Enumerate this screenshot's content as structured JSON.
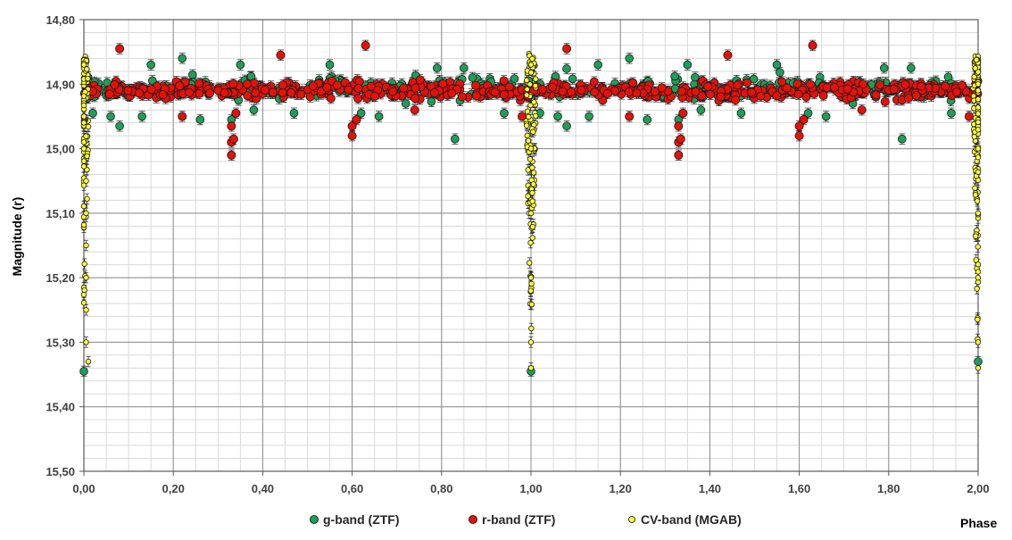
{
  "chart_data": {
    "type": "scatter",
    "ylabel": "Magnitude (r)",
    "xlabel": "Phase",
    "xlim": [
      0.0,
      2.0
    ],
    "ylim": [
      14.8,
      15.5
    ],
    "y_inverted": true,
    "x_major_ticks": [
      "0,00",
      "0,20",
      "0,40",
      "0,60",
      "0,80",
      "1,00",
      "1,20",
      "1,40",
      "1,60",
      "1,80",
      "2,00"
    ],
    "y_major_ticks": [
      "14,80",
      "14,90",
      "15,00",
      "15,10",
      "15,20",
      "15,30",
      "15,40",
      "15,50"
    ],
    "x_minor_step": 0.05,
    "y_minor_step": 0.02,
    "grid": true,
    "legend_position": "bottom",
    "error_bar_mag": 0.008,
    "series": [
      {
        "name": "g-band (ZTF)",
        "color": "#1e9e5a",
        "marker": "circle",
        "baseline": 14.905,
        "points": [
          [
            0.0,
            15.345
          ],
          [
            0.02,
            14.945
          ],
          [
            0.06,
            14.95
          ],
          [
            0.08,
            14.965
          ],
          [
            0.13,
            14.95
          ],
          [
            0.15,
            14.87
          ],
          [
            0.22,
            14.86
          ],
          [
            0.26,
            14.955
          ],
          [
            0.33,
            14.955
          ],
          [
            0.35,
            14.87
          ],
          [
            0.38,
            14.94
          ],
          [
            0.47,
            14.945
          ],
          [
            0.55,
            14.87
          ],
          [
            0.62,
            14.945
          ],
          [
            0.66,
            14.95
          ],
          [
            0.72,
            14.93
          ],
          [
            0.79,
            14.875
          ],
          [
            0.83,
            14.985
          ],
          [
            0.85,
            14.875
          ],
          [
            0.94,
            14.945
          ],
          [
            1.0,
            15.345
          ],
          [
            1.02,
            14.945
          ],
          [
            1.06,
            14.95
          ],
          [
            1.08,
            14.965
          ],
          [
            1.13,
            14.95
          ],
          [
            1.15,
            14.87
          ],
          [
            1.22,
            14.86
          ],
          [
            1.26,
            14.955
          ],
          [
            1.33,
            14.955
          ],
          [
            1.35,
            14.87
          ],
          [
            1.38,
            14.94
          ],
          [
            1.47,
            14.945
          ],
          [
            1.55,
            14.87
          ],
          [
            1.62,
            14.945
          ],
          [
            1.66,
            14.95
          ],
          [
            1.72,
            14.93
          ],
          [
            1.79,
            14.875
          ],
          [
            1.83,
            14.985
          ],
          [
            1.85,
            14.875
          ],
          [
            1.94,
            14.945
          ],
          [
            2.0,
            15.33
          ]
        ]
      },
      {
        "name": "r-band (ZTF)",
        "color": "#e3120b",
        "marker": "circle",
        "baseline": 14.91,
        "points": [
          [
            0.08,
            14.845
          ],
          [
            0.44,
            14.855
          ],
          [
            0.22,
            14.95
          ],
          [
            0.33,
            15.01
          ],
          [
            0.33,
            14.99
          ],
          [
            0.335,
            14.985
          ],
          [
            0.33,
            14.965
          ],
          [
            0.34,
            14.945
          ],
          [
            0.6,
            14.98
          ],
          [
            0.6,
            14.965
          ],
          [
            0.61,
            14.955
          ],
          [
            0.63,
            14.84
          ],
          [
            0.74,
            14.94
          ],
          [
            0.98,
            14.95
          ],
          [
            1.08,
            14.845
          ],
          [
            1.44,
            14.855
          ],
          [
            1.22,
            14.95
          ],
          [
            1.33,
            15.01
          ],
          [
            1.33,
            14.99
          ],
          [
            1.335,
            14.985
          ],
          [
            1.33,
            14.965
          ],
          [
            1.34,
            14.945
          ],
          [
            1.6,
            14.98
          ],
          [
            1.6,
            14.965
          ],
          [
            1.61,
            14.955
          ],
          [
            1.63,
            14.84
          ],
          [
            1.74,
            14.94
          ],
          [
            1.98,
            14.95
          ]
        ]
      },
      {
        "name": "CV-band (MGAB)",
        "color": "#ffff33",
        "marker": "circle-small",
        "points": [
          [
            0.0,
            14.87
          ],
          [
            0.0,
            14.95
          ],
          [
            0.0,
            15.0
          ],
          [
            0.005,
            15.05
          ],
          [
            0.005,
            15.1
          ],
          [
            0.005,
            15.15
          ],
          [
            0.005,
            15.2
          ],
          [
            0.005,
            15.25
          ],
          [
            0.005,
            15.3
          ],
          [
            0.01,
            15.33
          ],
          [
            1.0,
            14.87
          ],
          [
            1.0,
            15.0
          ],
          [
            1.0,
            15.1
          ],
          [
            1.0,
            15.2
          ],
          [
            1.0,
            15.3
          ],
          [
            1.0,
            15.34
          ],
          [
            2.0,
            14.9
          ],
          [
            2.0,
            15.0
          ],
          [
            2.0,
            15.1
          ],
          [
            2.0,
            15.2
          ],
          [
            2.0,
            15.3
          ],
          [
            2.0,
            15.34
          ]
        ]
      }
    ]
  }
}
